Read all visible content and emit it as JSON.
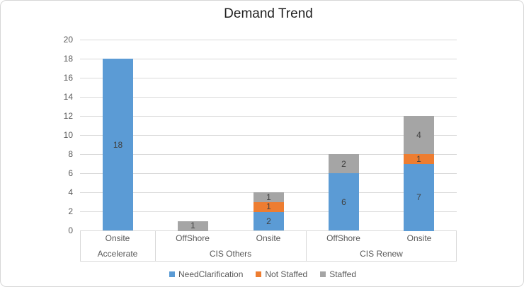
{
  "window": {
    "background": "#ffffff",
    "frame_border_color": "#d7d7d7"
  },
  "chart_data": {
    "type": "bar",
    "stacked": true,
    "title": "Demand Trend",
    "xlabel": "",
    "ylabel": "",
    "ylim": [
      0,
      20
    ],
    "ytick_step": 2,
    "grid": true,
    "legend_position": "bottom",
    "groups": [
      {
        "label": "Accelerate",
        "slots": [
          "Onsite"
        ]
      },
      {
        "label": "CIS Others",
        "slots": [
          "OffShore",
          "Onsite"
        ]
      },
      {
        "label": "CIS Renew",
        "slots": [
          "OffShore",
          "Onsite"
        ]
      }
    ],
    "series": [
      {
        "name": "NeedClarification",
        "color": "#5b9bd5",
        "values": [
          18,
          0,
          2,
          6,
          7
        ]
      },
      {
        "name": "Not Staffed",
        "color": "#ed7d31",
        "values": [
          0,
          0,
          1,
          0,
          1
        ]
      },
      {
        "name": "Staffed",
        "color": "#a5a5a5",
        "values": [
          0,
          1,
          1,
          2,
          4
        ]
      }
    ],
    "totals": [
      18,
      1,
      4,
      8,
      12
    ],
    "colors": {
      "gridline": "#d9d9d9",
      "axis_line": "#d9d9d9",
      "tick_text": "#595959",
      "bar_label_text": "#404040",
      "title_text": "#1f1f1f"
    }
  }
}
